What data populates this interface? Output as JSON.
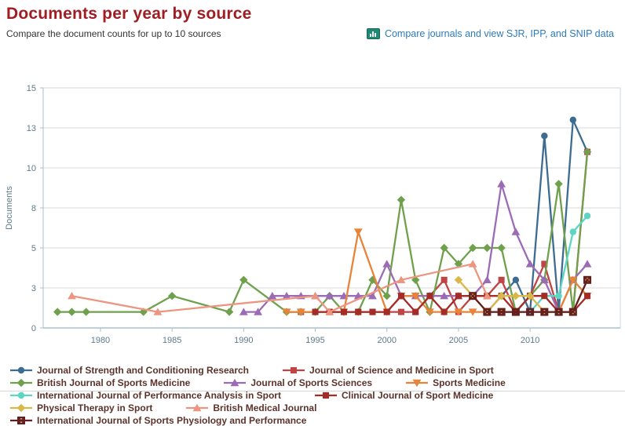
{
  "header": {
    "title": "Documents per year by source",
    "subtitle": "Compare the document counts for up to 10 sources",
    "link": {
      "label": "Compare journals and view SJR, IPP, and SNIP data",
      "icon": "bar-chart-icon"
    }
  },
  "colors": {
    "title": "#A01D23",
    "link": "#2D7BB8",
    "legend_text": "#5B332B",
    "axis": "#A8C0CD",
    "grid": "#D9D9D9",
    "tick_label": "#5E7A8C"
  },
  "chart_data": {
    "type": "line",
    "title": "Documents per year by source",
    "xlabel": "",
    "ylabel": "Documents",
    "x_range": [
      1976,
      2016.3
    ],
    "y_range": [
      0,
      15
    ],
    "x_ticks": [
      1980,
      1985,
      1990,
      1995,
      2000,
      2005,
      2010
    ],
    "y_ticks": [
      {
        "value": 0,
        "label": "0"
      },
      {
        "value": 2.5,
        "label": "3"
      },
      {
        "value": 5,
        "label": "5"
      },
      {
        "value": 7.5,
        "label": "8"
      },
      {
        "value": 10,
        "label": "10"
      },
      {
        "value": 12.5,
        "label": "13"
      },
      {
        "value": 15,
        "label": "15"
      }
    ],
    "grid": "horizontal",
    "legend_position": "bottom",
    "series": [
      {
        "name": "Journal of Strength and Conditioning Research",
        "color": "#3D6C93",
        "marker": "circle",
        "points": [
          [
            2007,
            1
          ],
          [
            2008,
            2
          ],
          [
            2009,
            3
          ],
          [
            2010,
            1
          ],
          [
            2011,
            12
          ],
          [
            2012,
            1
          ],
          [
            2013,
            13
          ],
          [
            2014,
            11
          ]
        ]
      },
      {
        "name": "Journal of Science and Medicine in Sport",
        "color": "#C14444",
        "marker": "square",
        "points": [
          [
            1994,
            1
          ],
          [
            1995,
            1
          ],
          [
            1996,
            1
          ],
          [
            1997,
            1
          ],
          [
            1998,
            1
          ],
          [
            1999,
            1
          ],
          [
            2000,
            1
          ],
          [
            2001,
            1
          ],
          [
            2002,
            1
          ],
          [
            2003,
            2
          ],
          [
            2004,
            3
          ],
          [
            2005,
            1
          ],
          [
            2006,
            2
          ],
          [
            2007,
            2
          ],
          [
            2008,
            3
          ],
          [
            2009,
            1
          ],
          [
            2010,
            2
          ],
          [
            2011,
            4
          ],
          [
            2012,
            1
          ],
          [
            2013,
            1
          ],
          [
            2014,
            11
          ]
        ]
      },
      {
        "name": "British Journal of Sports Medicine",
        "color": "#6FA04B",
        "marker": "diamond",
        "points": [
          [
            1977,
            1
          ],
          [
            1978,
            1
          ],
          [
            1979,
            1
          ],
          [
            1983,
            1
          ],
          [
            1985,
            2
          ],
          [
            1989,
            1
          ],
          [
            1990,
            3
          ],
          [
            1993,
            1
          ],
          [
            1994,
            1
          ],
          [
            1995,
            1
          ],
          [
            1996,
            2
          ],
          [
            1997,
            1
          ],
          [
            1998,
            1
          ],
          [
            1999,
            3
          ],
          [
            2000,
            2
          ],
          [
            2001,
            8
          ],
          [
            2002,
            3
          ],
          [
            2003,
            1
          ],
          [
            2004,
            5
          ],
          [
            2005,
            4
          ],
          [
            2006,
            5
          ],
          [
            2007,
            5
          ],
          [
            2008,
            5
          ],
          [
            2009,
            1
          ],
          [
            2010,
            2
          ],
          [
            2011,
            3
          ],
          [
            2012,
            9
          ],
          [
            2013,
            1
          ],
          [
            2014,
            11
          ]
        ]
      },
      {
        "name": "Journal of Sports Sciences",
        "color": "#9C6BB5",
        "marker": "triangle-up",
        "points": [
          [
            1990,
            1
          ],
          [
            1991,
            1
          ],
          [
            1992,
            2
          ],
          [
            1993,
            2
          ],
          [
            1994,
            2
          ],
          [
            1995,
            2
          ],
          [
            1996,
            2
          ],
          [
            1997,
            2
          ],
          [
            1998,
            2
          ],
          [
            1999,
            2
          ],
          [
            2000,
            4
          ],
          [
            2001,
            2
          ],
          [
            2002,
            2
          ],
          [
            2003,
            2
          ],
          [
            2004,
            2
          ],
          [
            2005,
            2
          ],
          [
            2006,
            2
          ],
          [
            2007,
            3
          ],
          [
            2008,
            9
          ],
          [
            2009,
            6
          ],
          [
            2010,
            4
          ],
          [
            2011,
            3
          ],
          [
            2012,
            1
          ],
          [
            2013,
            3
          ],
          [
            2014,
            4
          ]
        ]
      },
      {
        "name": "Sports Medicine",
        "color": "#E8833A",
        "marker": "triangle-down",
        "points": [
          [
            1993,
            1
          ],
          [
            1994,
            1
          ],
          [
            1997,
            1
          ],
          [
            1998,
            6
          ],
          [
            2000,
            1
          ],
          [
            2001,
            2
          ],
          [
            2002,
            2
          ],
          [
            2003,
            1
          ],
          [
            2004,
            1
          ],
          [
            2005,
            1
          ],
          [
            2006,
            1
          ],
          [
            2007,
            1
          ],
          [
            2008,
            1
          ],
          [
            2009,
            1
          ],
          [
            2010,
            1
          ],
          [
            2011,
            1
          ],
          [
            2012,
            1
          ],
          [
            2013,
            3
          ],
          [
            2014,
            2
          ]
        ]
      },
      {
        "name": "International Journal of Performance Analysis in Sport",
        "color": "#5BD6C3",
        "marker": "circle",
        "points": [
          [
            2010,
            1
          ],
          [
            2011,
            2
          ],
          [
            2012,
            2
          ],
          [
            2013,
            6
          ],
          [
            2014,
            7
          ]
        ]
      },
      {
        "name": "Clinical Journal of Sport Medicine",
        "color": "#A32C26",
        "marker": "square",
        "points": [
          [
            1995,
            1
          ],
          [
            1996,
            1
          ],
          [
            1997,
            1
          ],
          [
            1998,
            1
          ],
          [
            1999,
            1
          ],
          [
            2000,
            1
          ],
          [
            2001,
            2
          ],
          [
            2002,
            1
          ],
          [
            2003,
            2
          ],
          [
            2004,
            1
          ],
          [
            2005,
            2
          ],
          [
            2006,
            2
          ],
          [
            2007,
            2
          ],
          [
            2008,
            2
          ],
          [
            2009,
            1
          ],
          [
            2010,
            2
          ],
          [
            2011,
            2
          ],
          [
            2012,
            1
          ],
          [
            2013,
            1
          ],
          [
            2014,
            2
          ]
        ]
      },
      {
        "name": "Physical Therapy in Sport",
        "color": "#D9B84A",
        "marker": "diamond",
        "points": [
          [
            2005,
            3
          ],
          [
            2006,
            2
          ],
          [
            2007,
            1
          ],
          [
            2008,
            2
          ],
          [
            2009,
            2
          ],
          [
            2010,
            2
          ],
          [
            2011,
            1
          ],
          [
            2012,
            1
          ],
          [
            2013,
            1
          ],
          [
            2014,
            3
          ]
        ]
      },
      {
        "name": "British Medical Journal",
        "color": "#EC9580",
        "marker": "triangle-up",
        "points": [
          [
            1978,
            2
          ],
          [
            1984,
            1
          ],
          [
            1995,
            2
          ],
          [
            1996,
            1
          ],
          [
            2001,
            3
          ],
          [
            2006,
            4
          ],
          [
            2007,
            2
          ]
        ]
      },
      {
        "name": "International Journal of Sports Physiology and Performance",
        "color": "#641E1E",
        "marker": "x-square",
        "points": [
          [
            2006,
            2
          ],
          [
            2007,
            1
          ],
          [
            2008,
            1
          ],
          [
            2009,
            1
          ],
          [
            2010,
            1
          ],
          [
            2011,
            1
          ],
          [
            2012,
            1
          ],
          [
            2013,
            1
          ],
          [
            2014,
            3
          ]
        ]
      }
    ]
  }
}
